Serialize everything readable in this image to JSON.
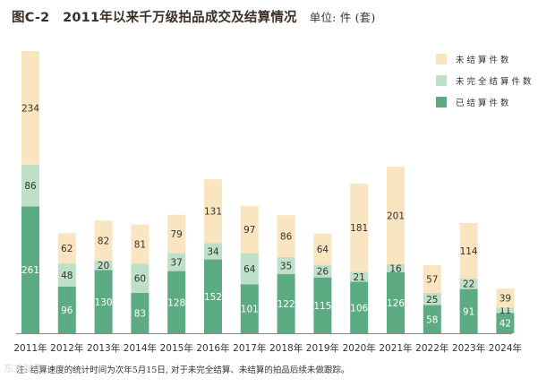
{
  "title": "图C-2　2011年以来千万级拍品成交及结算情况",
  "unit": "单位: 件 (套)",
  "note": "注: 结算速度的统计时间为次年5月15日, 对于未完全结算、未结算的拍品后续未做跟踪。",
  "watermark": "东方财富",
  "colors": {
    "settled": "#5dab82",
    "partial": "#bfe0c8",
    "unsettled": "#f9e6c0",
    "axis": "#888888"
  },
  "chart_data": {
    "type": "bar",
    "stacked": true,
    "title": "2011年以来千万级拍品成交及结算情况",
    "ylabel": "件 (套)",
    "categories": [
      "2011年",
      "2012年",
      "2013年",
      "2014年",
      "2015年",
      "2016年",
      "2017年",
      "2018年",
      "2019年",
      "2020年",
      "2021年",
      "2022年",
      "2023年",
      "2024年"
    ],
    "series": [
      {
        "name": "已结算件数",
        "key": "settled",
        "values": [
          261,
          96,
          130,
          83,
          128,
          152,
          101,
          122,
          115,
          106,
          126,
          58,
          91,
          42
        ]
      },
      {
        "name": "未完全结算件数",
        "key": "partial",
        "values": [
          86,
          48,
          20,
          60,
          37,
          34,
          64,
          35,
          26,
          21,
          16,
          25,
          22,
          11
        ]
      },
      {
        "name": "未结算件数",
        "key": "unsettled",
        "values": [
          234,
          62,
          82,
          81,
          79,
          131,
          97,
          86,
          64,
          181,
          201,
          57,
          114,
          39
        ]
      }
    ],
    "legend": [
      "未结算件数",
      "未完全结算件数",
      "已结算件数"
    ],
    "legend_position": "top-right",
    "ylim": [
      0,
      581
    ],
    "grid": false
  }
}
